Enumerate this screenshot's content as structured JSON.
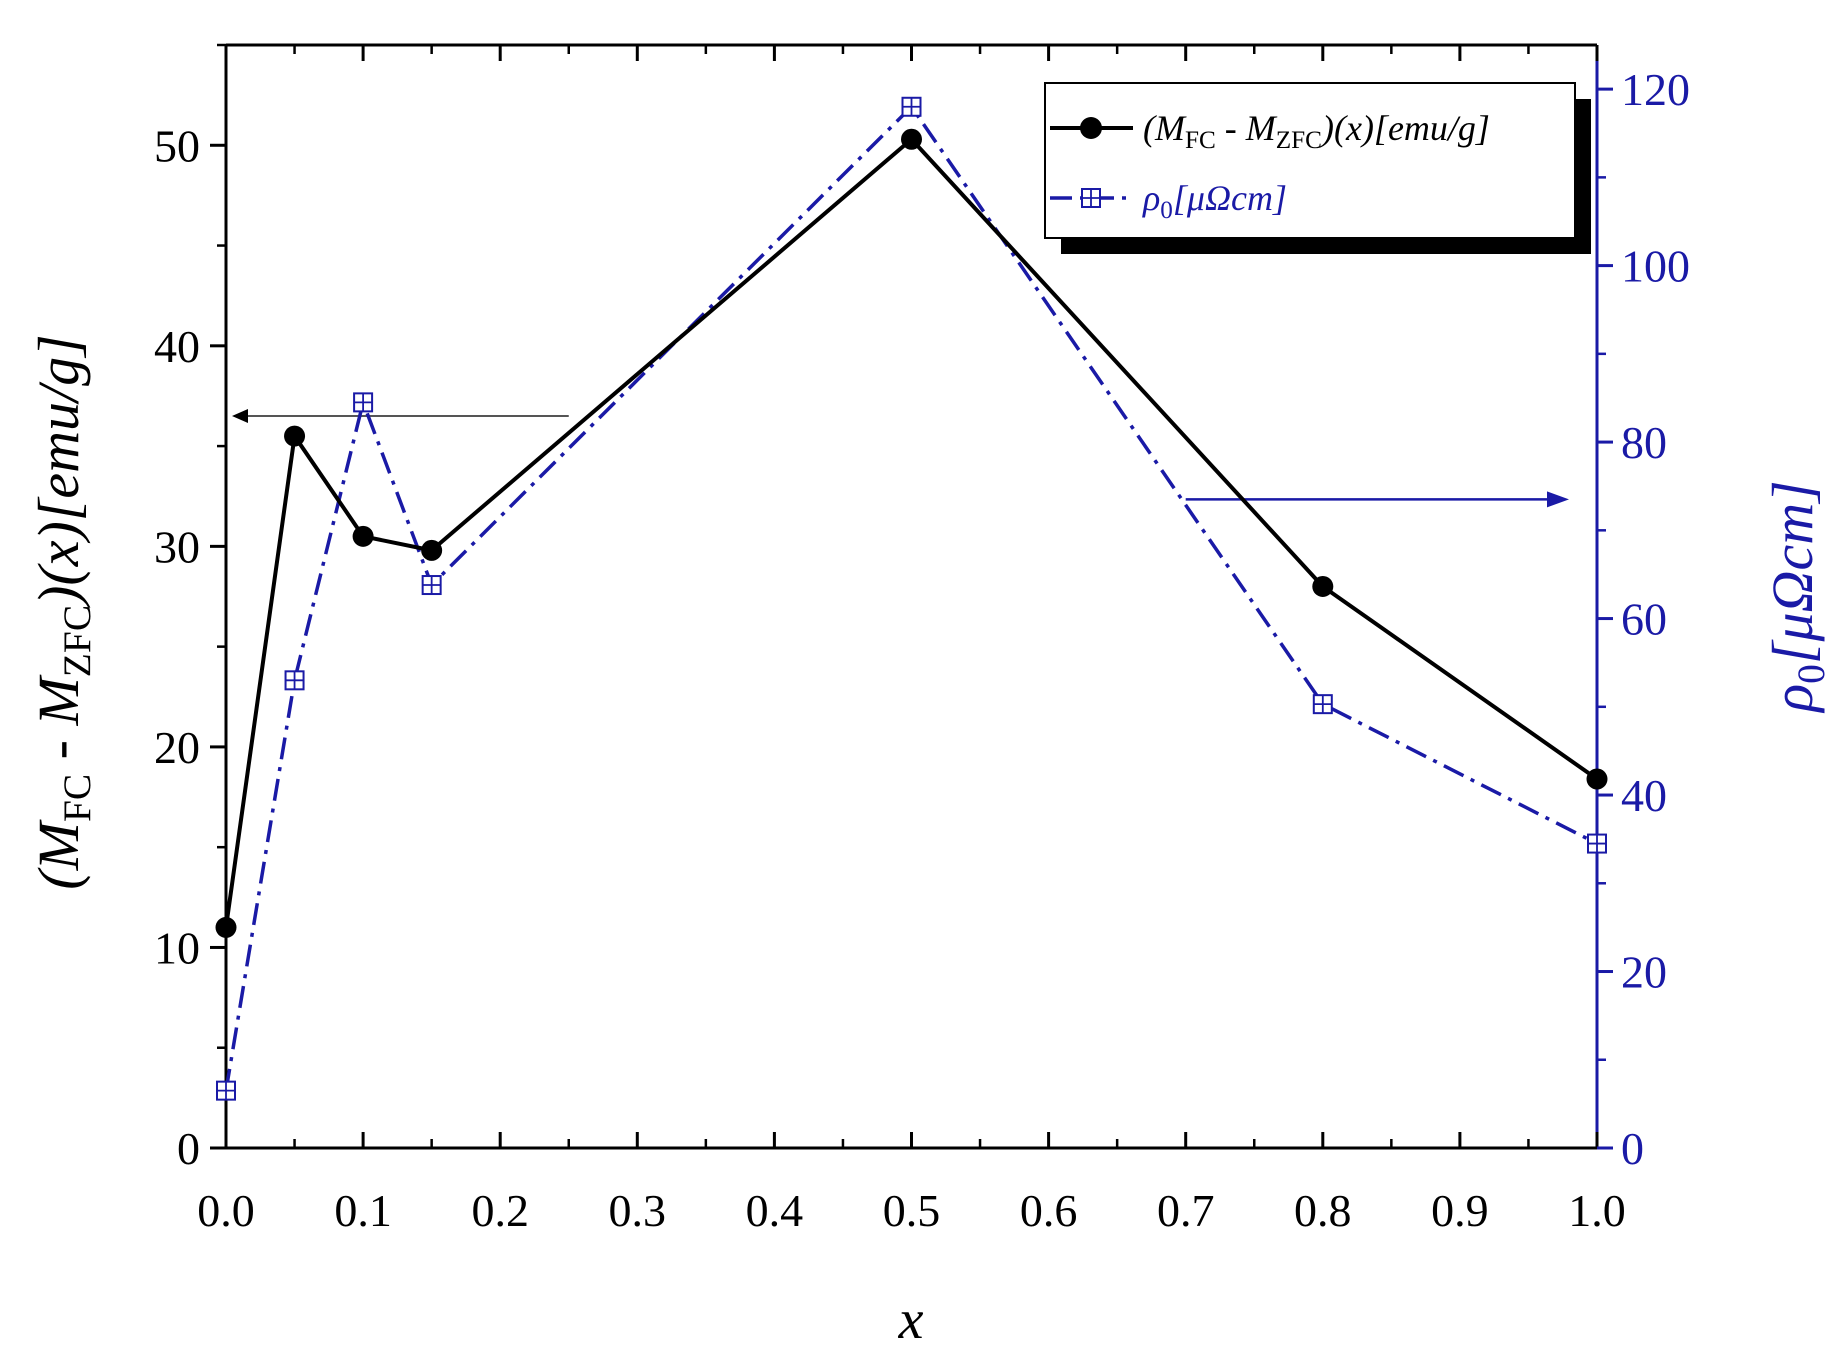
{
  "chart_data": {
    "type": "line",
    "x_axis": {
      "label": "x",
      "range": [
        0.0,
        1.0
      ],
      "ticks": [
        0.0,
        0.1,
        0.2,
        0.3,
        0.4,
        0.5,
        0.6,
        0.7,
        0.8,
        0.9,
        1.0
      ],
      "tick_labels": [
        "0.0",
        "0.1",
        "0.2",
        "0.3",
        "0.4",
        "0.5",
        "0.6",
        "0.7",
        "0.8",
        "0.9",
        "1.0"
      ]
    },
    "y_left": {
      "label_parts": [
        "(M",
        "FC",
        " - M",
        "ZFC",
        ")(x)[emu/g]"
      ],
      "range": [
        0,
        55
      ],
      "ticks": [
        0,
        10,
        20,
        30,
        40,
        50
      ],
      "tick_labels": [
        "0",
        "10",
        "20",
        "30",
        "40",
        "50"
      ],
      "color": "#000000"
    },
    "y_right": {
      "label_parts": [
        "ρ",
        "0",
        "[μΩcm]"
      ],
      "range": [
        0,
        125
      ],
      "ticks": [
        0,
        20,
        40,
        60,
        80,
        100,
        120
      ],
      "tick_labels": [
        "0",
        "20",
        "40",
        "60",
        "80",
        "100",
        "120"
      ],
      "color": "#1a1aa6"
    },
    "series": [
      {
        "name_parts": [
          "(M",
          "FC",
          " - M",
          "ZFC",
          ")(x)[emu/g]"
        ],
        "axis": "left",
        "color": "#000000",
        "line_style": "solid",
        "marker": "filled-circle",
        "x": [
          0.0,
          0.05,
          0.1,
          0.15,
          0.5,
          0.8,
          1.0
        ],
        "y": [
          11.0,
          35.5,
          30.5,
          29.8,
          50.3,
          28.0,
          18.4
        ]
      },
      {
        "name_parts": [
          "ρ",
          "0",
          "[μΩcm]"
        ],
        "axis": "right",
        "color": "#1a1aa6",
        "line_style": "dash-dot",
        "marker": "crossed-square",
        "x": [
          0.0,
          0.05,
          0.1,
          0.15,
          0.5,
          0.8,
          1.0
        ],
        "y": [
          6.5,
          53.0,
          84.5,
          63.8,
          118.0,
          50.3,
          34.5
        ]
      }
    ],
    "annotations": [
      {
        "type": "arrow",
        "direction": "left",
        "points_to": "left-axis",
        "at_y_left": 36.5,
        "from_x": 0.25
      },
      {
        "type": "arrow",
        "direction": "right",
        "points_to": "right-axis",
        "at_y_right": 73.5,
        "from_x": 0.7
      }
    ],
    "legend": {
      "placement": "top-right"
    },
    "grid": false
  }
}
